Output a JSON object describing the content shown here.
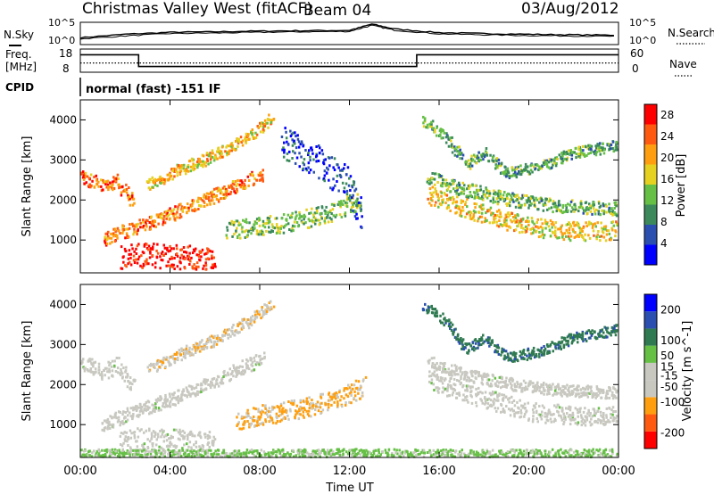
{
  "header": {
    "title": "Christmas Valley West (fitACF)",
    "beam": "Beam 04",
    "date": "03/Aug/2012"
  },
  "side_labels": {
    "nsky": "N.Sky",
    "nsearch": "N.Search",
    "freq_line1": "Freq.",
    "freq_line2": "[MHz]",
    "nave": "Nave",
    "cpid": "CPID",
    "cpid_text": "normal (fast) -151 IF"
  },
  "noise_panel": {
    "left_ticks": [
      "10^5",
      "10^0"
    ],
    "right_ticks": [
      "10^5",
      "10^0"
    ]
  },
  "freq_panel": {
    "left_ticks": [
      "18",
      "8"
    ],
    "right_ticks": [
      "60",
      "0"
    ]
  },
  "x_axis": {
    "label": "Time UT",
    "ticks": [
      "00:00",
      "04:00",
      "08:00",
      "12:00",
      "16:00",
      "20:00",
      "00:00"
    ]
  },
  "colors": {
    "power_scale": [
      "#0000ff",
      "#2b4fb0",
      "#3c8a5c",
      "#66c046",
      "#e6d020",
      "#ff9f10",
      "#ff5a10",
      "#ff0000"
    ],
    "velocity_scale": [
      "#ff0000",
      "#ff5a10",
      "#ff9f10",
      "#c8c8c0",
      "#c8c8c0",
      "#66c046",
      "#2f7a50",
      "#2b4fb0",
      "#0000ff"
    ]
  },
  "chart_data": [
    {
      "type": "line",
      "title": "N.Sky / N.Search",
      "x_range": [
        "00:00",
        "24:00"
      ],
      "y_scale": "log",
      "ylim": [
        1,
        100000
      ],
      "series": [
        {
          "name": "N.Sky",
          "x": [
            0,
            2,
            4,
            6,
            8,
            10,
            12,
            13,
            14,
            16,
            18,
            20,
            22,
            24
          ],
          "y": [
            30,
            200,
            600,
            800,
            1200,
            1500,
            1800,
            60000,
            4000,
            500,
            300,
            200,
            150,
            120
          ]
        },
        {
          "name": "N.Search",
          "x": [
            0,
            2,
            4,
            6,
            8,
            10,
            12,
            13,
            14,
            16,
            18,
            20,
            22,
            24
          ],
          "y": [
            15,
            80,
            300,
            400,
            600,
            800,
            1000,
            30000,
            2000,
            250,
            150,
            100,
            80,
            60
          ]
        }
      ]
    },
    {
      "type": "line",
      "title": "Freq / Nave",
      "x_range": [
        "00:00",
        "24:00"
      ],
      "series": [
        {
          "name": "Freq. [MHz]",
          "x": [
            0,
            2.6,
            2.6,
            15,
            15,
            24
          ],
          "y": [
            16,
            16,
            10,
            10,
            16,
            16
          ],
          "ylim": [
            8,
            18
          ]
        },
        {
          "name": "Nave",
          "x": [
            0,
            24
          ],
          "y": [
            23,
            23
          ],
          "ylim": [
            0,
            60
          ]
        }
      ]
    },
    {
      "type": "heatmap",
      "title": "Power",
      "xlabel": "",
      "ylabel": "Slant Range [km]",
      "colorbar_label": "Power [dB]",
      "colorbar_ticks": [
        "28",
        "24",
        "20",
        "16",
        "12",
        "8",
        "4"
      ],
      "y_ticks": [
        "4000",
        "3000",
        "2000",
        "1000"
      ],
      "ylim": [
        180,
        4500
      ],
      "zlim": [
        0,
        30
      ],
      "bands": [
        {
          "t": [
            0.0,
            0.5,
            1.0,
            1.6,
            2.0,
            2.4
          ],
          "r": [
            2600,
            2500,
            2350,
            2500,
            2200,
            2000
          ],
          "v": 23,
          "w": 180
        },
        {
          "t": [
            1.0,
            2.5,
            4.0,
            5.5,
            7.0,
            8.2
          ],
          "r": [
            1050,
            1350,
            1650,
            2000,
            2400,
            2700
          ],
          "v": 22,
          "w": 170
        },
        {
          "t": [
            3.0,
            4.5,
            6.0,
            7.5,
            8.6
          ],
          "r": [
            2400,
            2800,
            3150,
            3600,
            4100
          ],
          "v": 19,
          "w": 150
        },
        {
          "t": [
            6.5,
            8.0,
            9.5,
            11.0,
            12.5
          ],
          "r": [
            1300,
            1350,
            1500,
            1700,
            2000
          ],
          "v": 13,
          "w": 240
        },
        {
          "t": [
            1.8,
            3.0,
            4.5,
            6.0
          ],
          "r": [
            600,
            650,
            600,
            560
          ],
          "v": 28,
          "w": 300
        },
        {
          "t": [
            15.5,
            17.0,
            18.5,
            20.0,
            22.0,
            24.0
          ],
          "r": [
            2150,
            1850,
            1600,
            1350,
            1250,
            1250
          ],
          "v": 18,
          "w": 240
        },
        {
          "t": [
            15.5,
            17.0,
            19.0,
            21.0,
            24.0
          ],
          "r": [
            2600,
            2300,
            2050,
            1900,
            1800
          ],
          "v": 12,
          "w": 170
        },
        {
          "t": [
            15.3,
            16.3,
            17.2,
            18.0,
            19.0,
            20.5,
            22.0,
            24.0
          ],
          "r": [
            4000,
            3600,
            2900,
            3200,
            2700,
            2850,
            3200,
            3400
          ],
          "v": 11,
          "w": 140
        },
        {
          "t": [
            9.0,
            10.5,
            12.0,
            12.6
          ],
          "r": [
            3500,
            3000,
            2400,
            1400
          ],
          "v": 5,
          "w": 420
        }
      ]
    },
    {
      "type": "heatmap",
      "title": "Velocity",
      "xlabel": "Time UT",
      "ylabel": "Slant Range [km]",
      "colorbar_label": "Velocity [m s^-1]",
      "colorbar_ticks": [
        "200",
        "100",
        "50",
        "15",
        "-15",
        "-50",
        "-100",
        "-200"
      ],
      "y_ticks": [
        "4000",
        "3000",
        "2000",
        "1000"
      ],
      "ylim": [
        180,
        4500
      ],
      "zlim": [
        -250,
        250
      ],
      "bands": [
        {
          "t": [
            0.0,
            0.5,
            1.0,
            1.6,
            2.0,
            2.4
          ],
          "r": [
            2600,
            2500,
            2350,
            2500,
            2200,
            2000
          ],
          "v": 0,
          "w": 200
        },
        {
          "t": [
            1.0,
            2.5,
            4.0,
            5.5,
            7.0,
            8.2
          ],
          "r": [
            1050,
            1350,
            1650,
            2000,
            2400,
            2700
          ],
          "v": 0,
          "w": 170
        },
        {
          "t": [
            3.0,
            4.5,
            6.0,
            7.5,
            8.6
          ],
          "r": [
            2400,
            2800,
            3150,
            3600,
            4100
          ],
          "v": -70,
          "w": 140
        },
        {
          "t": [
            7.0,
            8.5,
            10.0,
            11.5,
            12.7
          ],
          "r": [
            1150,
            1300,
            1450,
            1650,
            2000
          ],
          "v": -90,
          "w": 250
        },
        {
          "t": [
            1.8,
            3.0,
            4.5,
            6.0
          ],
          "r": [
            600,
            650,
            600,
            560
          ],
          "v": 0,
          "w": 300
        },
        {
          "t": [
            15.5,
            17.0,
            18.5,
            20.0,
            22.0,
            24.0
          ],
          "r": [
            2150,
            1850,
            1600,
            1350,
            1250,
            1250
          ],
          "v": 0,
          "w": 240
        },
        {
          "t": [
            15.5,
            17.0,
            19.0,
            21.0,
            24.0
          ],
          "r": [
            2600,
            2300,
            2050,
            1900,
            1800
          ],
          "v": 0,
          "w": 150
        },
        {
          "t": [
            15.3,
            16.3,
            17.2,
            18.0,
            19.0,
            20.5,
            22.0,
            24.0
          ],
          "r": [
            4000,
            3600,
            2900,
            3200,
            2700,
            2850,
            3200,
            3400
          ],
          "v": 120,
          "w": 130
        },
        {
          "t": [
            0.0,
            6.0,
            12.0,
            18.0,
            24.0
          ],
          "r": [
            300,
            280,
            300,
            280,
            300
          ],
          "v": 40,
          "w": 120
        }
      ]
    }
  ]
}
